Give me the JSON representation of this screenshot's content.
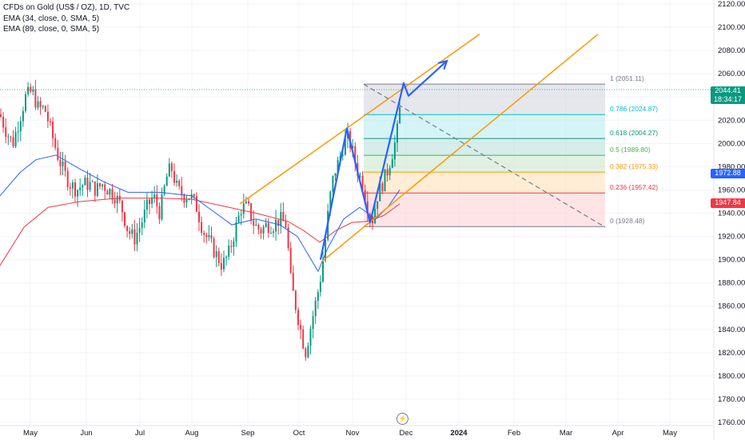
{
  "legend": {
    "title": "CFDs on Gold (US$ / OZ), 1D, TVC",
    "ema1": "EMA (34, close, 0, SMA, 5)",
    "ema2": "EMA (89, close, 0, SMA, 5)"
  },
  "badges": {
    "price": "2044.41",
    "countdown": "18:34:17",
    "ema34": "1972.88",
    "ema89": "1947.84"
  },
  "bolt_icon": "⚡",
  "colors": {
    "up": "#089981",
    "down": "#f23645",
    "ema34": "#2962ff",
    "ema89": "#f23645",
    "channel": "#ff9800",
    "projection": "#2962ff",
    "diag": "#787b86"
  },
  "chart_data": {
    "type": "candlestick",
    "symbol": "CFDs on Gold (US$ / OZ)",
    "timeframe": "1D",
    "y_ticks": [
      1760,
      1780,
      1800,
      1820,
      1840,
      1860,
      1880,
      1900,
      1920,
      1940,
      1960,
      1980,
      2000,
      2020,
      2040,
      2060,
      2080,
      2100,
      2120
    ],
    "ylim": [
      1752,
      2124
    ],
    "x_ticks": [
      "May",
      "Jun",
      "Jul",
      "Aug",
      "Sep",
      "Oct",
      "Nov",
      "Dec",
      "2024",
      "Feb",
      "Mar",
      "Apr",
      "May"
    ],
    "last_price": 2044.41,
    "ema34_last": 1972.88,
    "ema89_last": 1947.84,
    "ema34_path": [
      [
        0,
        1955
      ],
      [
        25,
        1975
      ],
      [
        45,
        1986
      ],
      [
        70,
        1990
      ],
      [
        100,
        1978
      ],
      [
        130,
        1967
      ],
      [
        160,
        1958
      ],
      [
        200,
        1958
      ],
      [
        240,
        1955
      ],
      [
        270,
        1940
      ],
      [
        290,
        1930
      ],
      [
        320,
        1935
      ],
      [
        350,
        1930
      ],
      [
        372,
        1920
      ],
      [
        385,
        1905
      ],
      [
        398,
        1890
      ],
      [
        410,
        1910
      ],
      [
        430,
        1935
      ],
      [
        450,
        1945
      ],
      [
        460,
        1940
      ],
      [
        470,
        1935
      ],
      [
        485,
        1945
      ],
      [
        500,
        1960
      ]
    ],
    "ema89_path": [
      [
        0,
        1895
      ],
      [
        30,
        1928
      ],
      [
        60,
        1945
      ],
      [
        100,
        1950
      ],
      [
        150,
        1953
      ],
      [
        200,
        1953
      ],
      [
        240,
        1952
      ],
      [
        280,
        1946
      ],
      [
        320,
        1940
      ],
      [
        360,
        1933
      ],
      [
        380,
        1925
      ],
      [
        400,
        1915
      ],
      [
        420,
        1925
      ],
      [
        440,
        1932
      ],
      [
        460,
        1933
      ],
      [
        480,
        1938
      ],
      [
        500,
        1948
      ]
    ],
    "candle_path": [
      [
        0,
        2025
      ],
      [
        8,
        2010
      ],
      [
        16,
        2000
      ],
      [
        24,
        2020
      ],
      [
        32,
        2040
      ],
      [
        40,
        2045
      ],
      [
        48,
        2030
      ],
      [
        56,
        2030
      ],
      [
        64,
        2010
      ],
      [
        72,
        1990
      ],
      [
        80,
        1975
      ],
      [
        88,
        1965
      ],
      [
        96,
        1960
      ],
      [
        104,
        1965
      ],
      [
        112,
        1965
      ],
      [
        120,
        1960
      ],
      [
        128,
        1965
      ],
      [
        136,
        1960
      ],
      [
        144,
        1955
      ],
      [
        152,
        1945
      ],
      [
        160,
        1925
      ],
      [
        168,
        1918
      ],
      [
        176,
        1930
      ],
      [
        184,
        1945
      ],
      [
        192,
        1955
      ],
      [
        200,
        1940
      ],
      [
        208,
        1970
      ],
      [
        214,
        1980
      ],
      [
        222,
        1960
      ],
      [
        230,
        1955
      ],
      [
        238,
        1955
      ],
      [
        246,
        1945
      ],
      [
        254,
        1925
      ],
      [
        262,
        1915
      ],
      [
        270,
        1905
      ],
      [
        278,
        1895
      ],
      [
        286,
        1905
      ],
      [
        294,
        1925
      ],
      [
        302,
        1945
      ],
      [
        310,
        1945
      ],
      [
        318,
        1930
      ],
      [
        326,
        1925
      ],
      [
        334,
        1930
      ],
      [
        342,
        1930
      ],
      [
        350,
        1935
      ],
      [
        358,
        1930
      ],
      [
        364,
        1880
      ],
      [
        370,
        1860
      ],
      [
        376,
        1840
      ],
      [
        382,
        1820
      ],
      [
        388,
        1840
      ],
      [
        394,
        1860
      ],
      [
        400,
        1880
      ],
      [
        406,
        1910
      ],
      [
        412,
        1950
      ],
      [
        418,
        1975
      ],
      [
        424,
        1985
      ],
      [
        430,
        2000
      ],
      [
        436,
        2005
      ],
      [
        442,
        1990
      ],
      [
        448,
        1975
      ],
      [
        454,
        1965
      ],
      [
        460,
        1945
      ],
      [
        466,
        1935
      ],
      [
        472,
        1955
      ],
      [
        478,
        1965
      ],
      [
        484,
        1975
      ],
      [
        490,
        1990
      ],
      [
        496,
        2005
      ],
      [
        502,
        2040
      ]
    ],
    "swing_points": [
      [
        300,
        1948
      ],
      [
        434,
        2013
      ],
      [
        463,
        1932
      ],
      [
        505,
        2052
      ]
    ],
    "channel_lines": [
      [
        [
          300,
          1948
        ],
        [
          600,
          2094
        ]
      ],
      [
        [
          402,
          1898
        ],
        [
          748,
          2094
        ]
      ]
    ],
    "projection_path": [
      [
        401,
        1900
      ],
      [
        434,
        2013
      ],
      [
        463,
        1932
      ],
      [
        505,
        2052
      ],
      [
        511,
        2041
      ],
      [
        559,
        2071
      ]
    ],
    "fib": {
      "x_start": 455,
      "x_end": 757,
      "levels": [
        {
          "ratio": "1",
          "value": 2051.11,
          "color": "#787b86"
        },
        {
          "ratio": "0.786",
          "value": 2024.87,
          "color": "#00bcd4"
        },
        {
          "ratio": "0.618",
          "value": 2004.27,
          "color": "#089981"
        },
        {
          "ratio": "0.5",
          "value": 1989.8,
          "color": "#4caf50"
        },
        {
          "ratio": "0.382",
          "value": 1975.33,
          "color": "#ff9800"
        },
        {
          "ratio": "0.236",
          "value": 1957.42,
          "color": "#f23645"
        },
        {
          "ratio": "0",
          "value": 1928.48,
          "color": "#787b86"
        }
      ],
      "zone_colors": [
        "#d1d4dc",
        "#b2ebf2",
        "#b2dfdb",
        "#c8e6c9",
        "#ffe0b2",
        "#ffcdd2"
      ]
    },
    "diagonal": [
      [
        455,
        2051
      ],
      [
        757,
        1928
      ]
    ]
  }
}
